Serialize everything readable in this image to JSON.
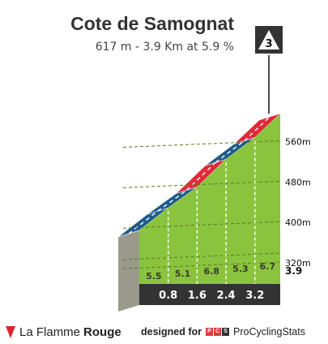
{
  "header": {
    "title": "Cote de Samognat",
    "subtitle": "617 m - 3.9 Km at 5.9 %",
    "category": "3"
  },
  "colors": {
    "gradient_low": "#8ac43f",
    "gradient_mid_blue": "#1f5a8a",
    "gradient_red": "#e02a3a",
    "base_band": "#333333",
    "side_wall": "#9a9a8c",
    "badge": "#333333"
  },
  "chart_data": {
    "type": "area",
    "title": "Cote de Samognat",
    "distance_unit": "km",
    "segments": [
      {
        "start_km": 0.0,
        "end_km": 0.8,
        "gradient": 5.5
      },
      {
        "start_km": 0.8,
        "end_km": 1.6,
        "gradient": 5.1
      },
      {
        "start_km": 1.6,
        "end_km": 2.4,
        "gradient": 6.8
      },
      {
        "start_km": 2.4,
        "end_km": 3.2,
        "gradient": 5.3
      },
      {
        "start_km": 3.2,
        "end_km": 3.9,
        "gradient": 6.7
      }
    ],
    "km_markers": [
      "0.8",
      "1.6",
      "2.4",
      "3.2"
    ],
    "gradient_labels": [
      "5.5",
      "5.1",
      "6.8",
      "5.3",
      "6.7"
    ],
    "end_distance_label": "3.9",
    "altitude_ticks": [
      {
        "value": 320,
        "label": "320m"
      },
      {
        "value": 400,
        "label": "400m"
      },
      {
        "value": 480,
        "label": "480m"
      },
      {
        "value": 560,
        "label": "560m"
      }
    ],
    "altitude_start": 386,
    "altitude_end": 617,
    "ylim": [
      280,
      617
    ]
  },
  "footer": {
    "brand_part1": "La Flamme",
    "brand_part2": "Rouge",
    "designed_for": "designed for",
    "pcs_letters": [
      "P",
      "C",
      "S"
    ],
    "pcs_name": "ProCyclingStats"
  }
}
